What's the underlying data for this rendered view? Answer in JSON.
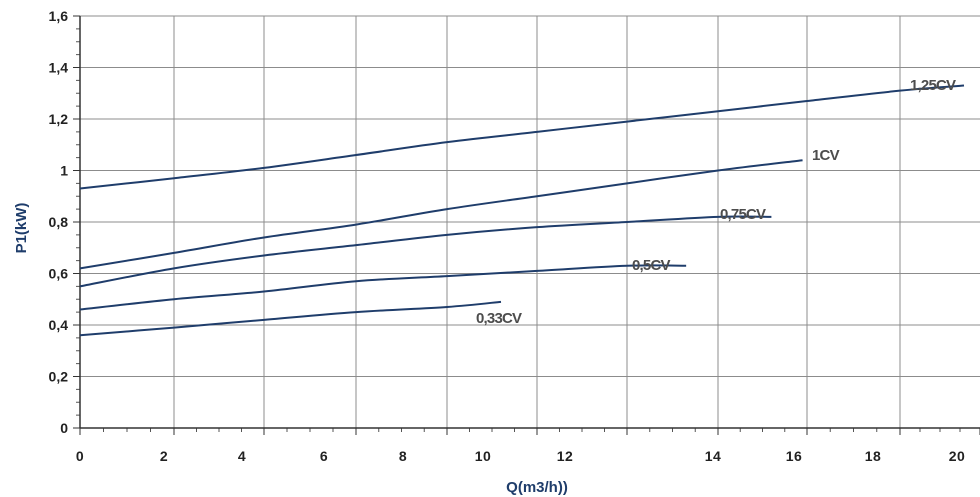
{
  "chart_data": {
    "type": "line",
    "title": "",
    "xlabel": "Q(m3/h))",
    "ylabel": "P1(kW)",
    "xlim": [
      0,
      20
    ],
    "ylim": [
      0,
      1.6
    ],
    "grid": true,
    "line_color": "#1f3d6b",
    "x_ticks": [
      {
        "label": "0",
        "v": 0
      },
      {
        "label": "2",
        "v": 2
      },
      {
        "label": "4",
        "v": 4
      },
      {
        "label": "6",
        "v": 6
      },
      {
        "label": "8",
        "v": 8
      },
      {
        "label": "10",
        "v": 10
      },
      {
        "label": "12",
        "v": 12
      },
      {
        "label": "14",
        "v": 14
      },
      {
        "label": "16",
        "v": 16
      },
      {
        "label": "18",
        "v": 18
      },
      {
        "label": "20",
        "v": 20
      }
    ],
    "y_ticks": [
      {
        "label": "0",
        "v": 0
      },
      {
        "label": "0,2",
        "v": 0.2
      },
      {
        "label": "0,4",
        "v": 0.4
      },
      {
        "label": "0,6",
        "v": 0.6
      },
      {
        "label": "0,8",
        "v": 0.8
      },
      {
        "label": "1",
        "v": 1.0
      },
      {
        "label": "1,2",
        "v": 1.2
      },
      {
        "label": "1,4",
        "v": 1.4
      },
      {
        "label": "1,6",
        "v": 1.6
      }
    ],
    "series": [
      {
        "name": "1,25CV",
        "x": [
          0,
          2,
          4,
          6,
          8,
          10,
          12,
          14,
          16,
          18,
          19.6
        ],
        "y": [
          0.93,
          0.97,
          1.01,
          1.06,
          1.11,
          1.15,
          1.19,
          1.23,
          1.27,
          1.31,
          1.33
        ]
      },
      {
        "name": "1CV",
        "x": [
          0,
          2,
          4,
          6,
          8,
          10,
          12,
          14,
          15.9
        ],
        "y": [
          0.62,
          0.68,
          0.74,
          0.79,
          0.85,
          0.9,
          0.95,
          1.0,
          1.04
        ]
      },
      {
        "name": "0,75CV",
        "x": [
          0,
          2,
          4,
          6,
          8,
          10,
          12,
          14,
          15.2
        ],
        "y": [
          0.55,
          0.62,
          0.67,
          0.71,
          0.75,
          0.78,
          0.8,
          0.82,
          0.82
        ]
      },
      {
        "name": "0,5CV",
        "x": [
          0,
          2,
          4,
          6,
          8,
          10,
          12,
          13.3
        ],
        "y": [
          0.46,
          0.5,
          0.53,
          0.57,
          0.59,
          0.61,
          0.63,
          0.63
        ]
      },
      {
        "name": "0,33CV",
        "x": [
          0,
          2,
          4,
          6,
          8,
          9.2
        ],
        "y": [
          0.36,
          0.39,
          0.42,
          0.45,
          0.47,
          0.49
        ]
      }
    ]
  }
}
